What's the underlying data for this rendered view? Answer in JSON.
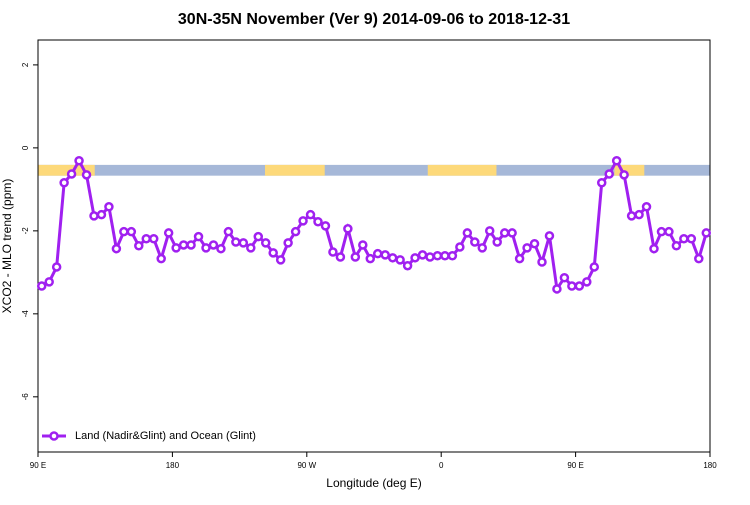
{
  "chart_data": {
    "type": "line",
    "title": "30N-35N November (Ver 9)   2014-09-06 to 2018-12-31",
    "xlabel": "Longitude (deg E)",
    "ylabel": "XCO2 - MLO trend (ppm)",
    "xlim": [
      90,
      540
    ],
    "xticks": [
      {
        "value": 90,
        "label": "90 E"
      },
      {
        "value": 180,
        "label": "180"
      },
      {
        "value": 270,
        "label": "90 W"
      },
      {
        "value": 360,
        "label": "0"
      },
      {
        "value": 450,
        "label": "90 E"
      },
      {
        "value": 540,
        "label": "180"
      }
    ],
    "ylim": [
      -7.33,
      2.6
    ],
    "yticks": [
      -6,
      -4,
      -2,
      0,
      2
    ],
    "land_band": {
      "range": [
        -0.67,
        -0.41
      ],
      "ocean_color": "#a6b8d8",
      "land_color": "#fdd97a",
      "land": [
        [
          90,
          128
        ],
        [
          242,
          282
        ],
        [
          351,
          397
        ],
        [
          476,
          496
        ]
      ]
    },
    "legend": "bottom-left",
    "x": [
      92.5,
      97.5,
      102.5,
      107.5,
      112.5,
      117.5,
      122.5,
      127.5,
      132.5,
      137.5,
      142.5,
      147.5,
      152.5,
      157.5,
      162.5,
      167.5,
      172.5,
      177.5,
      182.5,
      187.5,
      192.5,
      197.5,
      202.5,
      207.5,
      212.5,
      217.5,
      222.5,
      227.5,
      232.5,
      237.5,
      242.5,
      247.5,
      252.5,
      257.5,
      262.5,
      267.5,
      272.5,
      277.5,
      282.5,
      287.5,
      292.5,
      297.5,
      302.5,
      307.5,
      312.5,
      317.5,
      322.5,
      327.5,
      332.5,
      337.5,
      342.5,
      347.5,
      352.5,
      357.5,
      362.5,
      367.5,
      372.5,
      377.5,
      382.5,
      387.5,
      392.5,
      397.5,
      402.5,
      407.5,
      412.5,
      417.5,
      422.5,
      427.5,
      432.5,
      437.5,
      442.5,
      447.5,
      452.5,
      457.5,
      462.5,
      467.5,
      472.5,
      477.5,
      482.5,
      487.5,
      492.5,
      497.5,
      502.5,
      507.5,
      512.5,
      517.5,
      522.5,
      527.5,
      532.5,
      537.5
    ],
    "series": [
      {
        "name": "Land (Nadir&Glint) and Ocean (Glint)",
        "color": "#a020f0",
        "values": [
          -3.33,
          -3.23,
          -2.87,
          -0.84,
          -0.63,
          -0.31,
          -0.65,
          -1.64,
          -1.61,
          -1.42,
          -2.43,
          -2.02,
          -2.02,
          -2.36,
          -2.19,
          -2.19,
          -2.67,
          -2.05,
          -2.41,
          -2.34,
          -2.34,
          -2.14,
          -2.41,
          -2.34,
          -2.43,
          -2.02,
          -2.27,
          -2.29,
          -2.41,
          -2.14,
          -2.29,
          -2.53,
          -2.7,
          -2.29,
          -2.02,
          -1.76,
          -1.61,
          -1.78,
          -1.88,
          -2.51,
          -2.63,
          -1.95,
          -2.63,
          -2.34,
          -2.67,
          -2.55,
          -2.58,
          -2.65,
          -2.7,
          -2.84,
          -2.65,
          -2.58,
          -2.63,
          -2.6,
          -2.6,
          -2.6,
          -2.39,
          -2.05,
          -2.27,
          -2.41,
          -2.0,
          -2.27,
          -2.05,
          -2.05,
          -2.67,
          -2.41,
          -2.31,
          -2.75,
          -2.12,
          -3.4,
          -3.13,
          -3.33,
          -3.33,
          -3.23,
          -2.87,
          -0.84,
          -0.63,
          -0.31,
          -0.65,
          -1.64,
          -1.61,
          -1.42,
          -2.43,
          -2.02,
          -2.02,
          -2.36,
          -2.19,
          -2.19,
          -2.67,
          -2.05
        ]
      }
    ]
  }
}
